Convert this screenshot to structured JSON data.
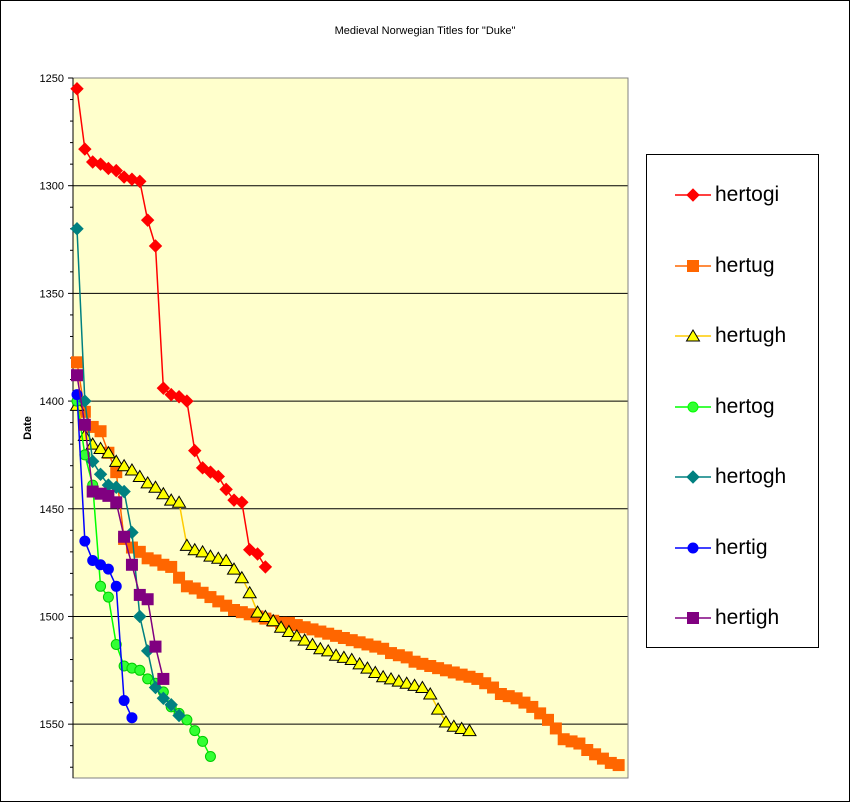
{
  "chart_data": {
    "type": "line",
    "title": "Medieval Norwegian Titles for \"Duke\"",
    "xlabel": "",
    "ylabel": "Date",
    "ylim": [
      1250,
      1575
    ],
    "yaxis_inverted": true,
    "yticks": [
      1250,
      1300,
      1350,
      1400,
      1450,
      1500,
      1550
    ],
    "grid": true,
    "legend_position": "right",
    "series": [
      {
        "name": "hertogi",
        "marker": "diamond",
        "color": "#ff0000",
        "fill": "#ff0000",
        "values": [
          1255,
          1283,
          1289,
          1290,
          1292,
          1293,
          1296,
          1297,
          1298,
          1316,
          1328,
          1394,
          1397,
          1398,
          1400,
          1423,
          1431,
          1433,
          1435,
          1441,
          1446,
          1447,
          1469,
          1471,
          1477
        ]
      },
      {
        "name": "hertug",
        "marker": "square",
        "color": "#ff6600",
        "fill": "#ff6600",
        "values": [
          1382,
          1405,
          1412,
          1414,
          1424,
          1433,
          1464,
          1468,
          1470,
          1473,
          1474,
          1476,
          1477,
          1482,
          1486,
          1487,
          1489,
          1491,
          1493,
          1495,
          1497,
          1498,
          1499,
          1500,
          1501,
          1502,
          1503,
          1503,
          1504,
          1505,
          1506,
          1507,
          1508,
          1509,
          1510,
          1511,
          1512,
          1513,
          1514,
          1515,
          1517,
          1518,
          1519,
          1521,
          1522,
          1523,
          1524,
          1525,
          1526,
          1527,
          1528,
          1529,
          1531,
          1533,
          1536,
          1537,
          1538,
          1540,
          1542,
          1545,
          1548,
          1552,
          1557,
          1558,
          1559,
          1562,
          1564,
          1566,
          1568,
          1569
        ]
      },
      {
        "name": "hertugh",
        "marker": "triangle",
        "color": "#ffcc00",
        "fill": "#ffff00",
        "values": [
          1402,
          1416,
          1420,
          1422,
          1424,
          1428,
          1430,
          1432,
          1435,
          1438,
          1440,
          1443,
          1446,
          1447,
          1467,
          1469,
          1470,
          1472,
          1473,
          1474,
          1478,
          1482,
          1489,
          1498,
          1500,
          1502,
          1505,
          1507,
          1509,
          1511,
          1513,
          1515,
          1516,
          1518,
          1519,
          1520,
          1522,
          1524,
          1526,
          1528,
          1529,
          1530,
          1531,
          1532,
          1533,
          1536,
          1543,
          1549,
          1551,
          1552,
          1553
        ]
      },
      {
        "name": "hertog",
        "marker": "circle",
        "color": "#00ff00",
        "fill": "#33ff33",
        "values": [
          1400,
          1425,
          1439,
          1486,
          1491,
          1513,
          1523,
          1524,
          1525,
          1529,
          1531,
          1535,
          1542,
          1545,
          1548,
          1553,
          1558,
          1565
        ]
      },
      {
        "name": "hertogh",
        "marker": "diamond",
        "color": "#008080",
        "fill": "#008080",
        "values": [
          1320,
          1400,
          1428,
          1434,
          1439,
          1440,
          1442,
          1461,
          1500,
          1516,
          1533,
          1538,
          1541,
          1546
        ]
      },
      {
        "name": "hertig",
        "marker": "circle",
        "color": "#0000ff",
        "fill": "#0000ff",
        "values": [
          1397,
          1465,
          1474,
          1476,
          1478,
          1486,
          1539,
          1547
        ]
      },
      {
        "name": "hertigh",
        "marker": "square",
        "color": "#800080",
        "fill": "#800080",
        "values": [
          1388,
          1411,
          1442,
          1443,
          1444,
          1447,
          1463,
          1476,
          1490,
          1492,
          1514,
          1529
        ]
      }
    ]
  }
}
